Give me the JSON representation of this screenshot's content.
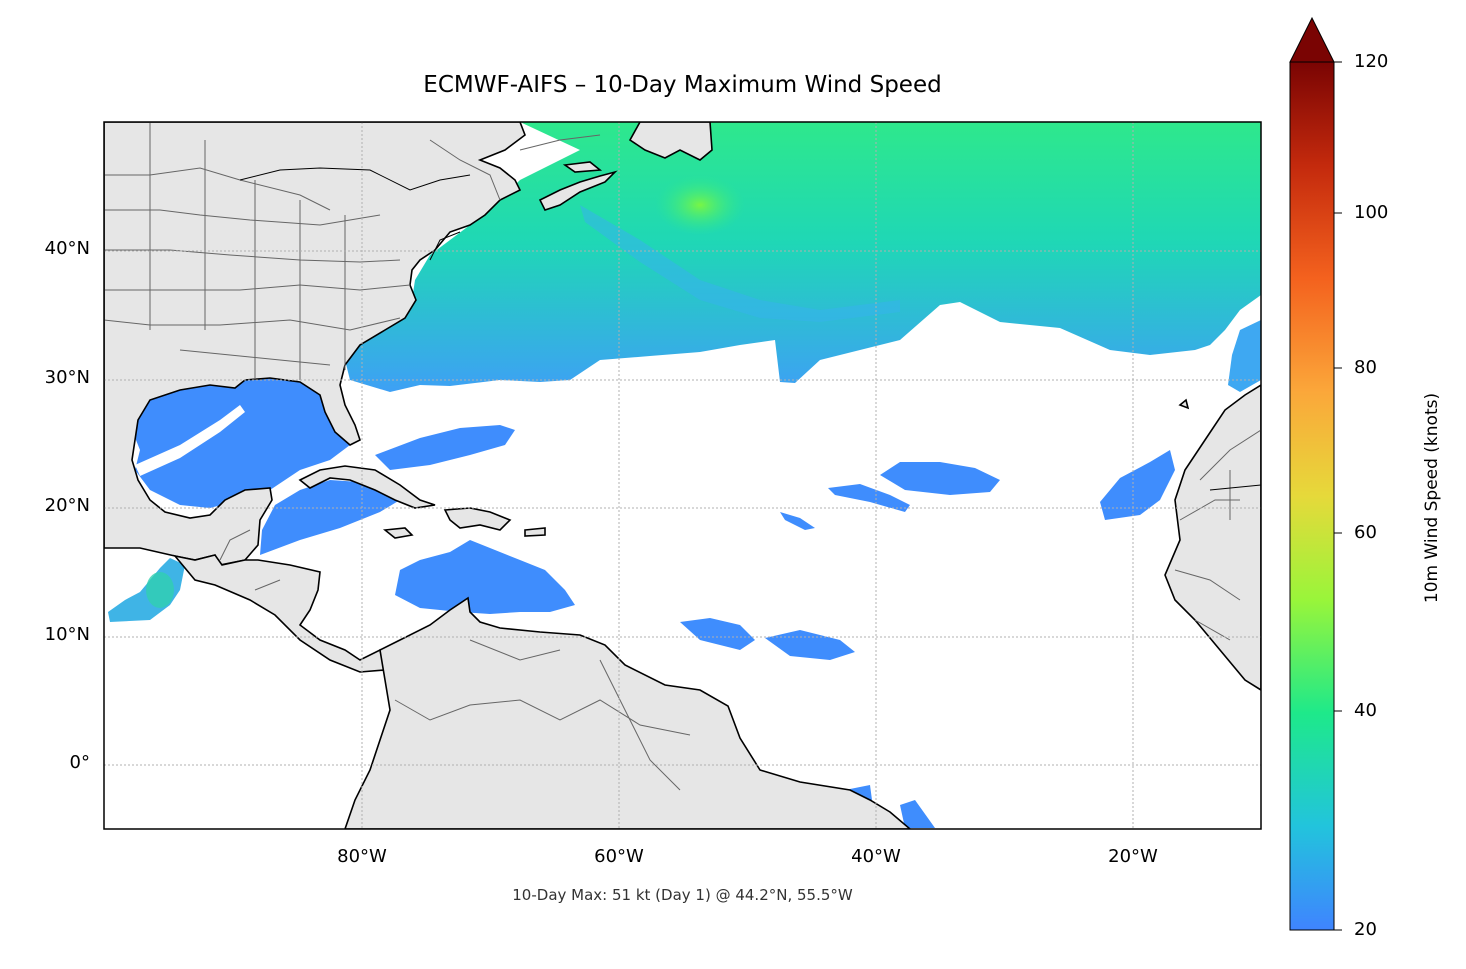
{
  "title": "ECMWF-AIFS – 10-Day Maximum Wind Speed",
  "footnote": "10-Day Max: 51 kt (Day 1) @ 44.2°N, 55.5°W",
  "lat_labels": [
    "40°N",
    "30°N",
    "20°N",
    "10°N",
    "0°"
  ],
  "lon_labels": [
    "80°W",
    "60°W",
    "40°W",
    "20°W"
  ],
  "colorbar": {
    "label": "10m Wind Speed (knots)",
    "ticks": [
      "120",
      "100",
      "80",
      "60",
      "40",
      "20"
    ],
    "range": [
      20,
      120
    ],
    "extend": "max",
    "colormap": [
      "#3f84ff",
      "#22c4dc",
      "#1ee98a",
      "#99f53a",
      "#e6d93a",
      "#fba73a",
      "#f4621e",
      "#c42a0d",
      "#7a0403"
    ]
  },
  "map": {
    "extent": {
      "lon": [
        -100,
        -10
      ],
      "lat": [
        -5,
        50
      ]
    },
    "land_color": "#e6e6e6",
    "max_point": {
      "speed_kt": 51,
      "day": 1,
      "lat": 44.2,
      "lon": -55.5
    }
  }
}
